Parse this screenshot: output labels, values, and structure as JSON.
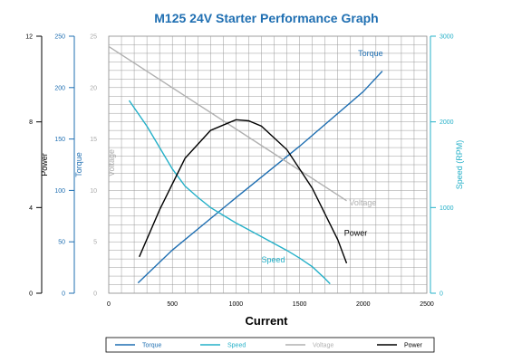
{
  "chart_data": {
    "type": "line",
    "title": "M125 24V Starter Performance Graph",
    "xlabel": "Current",
    "xlim": [
      0,
      2500
    ],
    "x_ticks": [
      "0",
      "500",
      "1000",
      "1500",
      "2000",
      "2500"
    ],
    "grid": true,
    "legend_placement": "bottom",
    "axes": {
      "power": {
        "label": "Power",
        "range": [
          0,
          12
        ],
        "ticks": [
          "0",
          "4",
          "8",
          "12"
        ],
        "color": "#000000"
      },
      "torque": {
        "label": "Torque",
        "range": [
          0,
          250
        ],
        "ticks": [
          "0",
          "50",
          "100",
          "150",
          "200",
          "250"
        ],
        "color": "#1f6fb2"
      },
      "voltage": {
        "label": "Voltage",
        "range": [
          0,
          25
        ],
        "ticks": [
          "0",
          "5",
          "10",
          "15",
          "20",
          "25"
        ],
        "color": "#aaaaaa"
      },
      "speed": {
        "label": "Speed (RPM)",
        "range": [
          0,
          3000
        ],
        "ticks": [
          "0",
          "1000",
          "2000",
          "3000"
        ],
        "color": "#25b0c8"
      }
    },
    "series": [
      {
        "name": "Torque",
        "axis": "torque",
        "color": "#1f6fb2",
        "annotation": "Torque",
        "points": [
          [
            230,
            10
          ],
          [
            500,
            42
          ],
          [
            1000,
            93
          ],
          [
            1500,
            143
          ],
          [
            2000,
            196
          ],
          [
            2150,
            216
          ]
        ]
      },
      {
        "name": "Speed",
        "axis": "speed",
        "color": "#25b0c8",
        "annotation": "Speed",
        "points": [
          [
            160,
            2250
          ],
          [
            300,
            1950
          ],
          [
            400,
            1700
          ],
          [
            500,
            1450
          ],
          [
            600,
            1250
          ],
          [
            700,
            1120
          ],
          [
            800,
            1000
          ],
          [
            900,
            910
          ],
          [
            1000,
            820
          ],
          [
            1100,
            740
          ],
          [
            1200,
            660
          ],
          [
            1300,
            580
          ],
          [
            1400,
            500
          ],
          [
            1500,
            410
          ],
          [
            1600,
            310
          ],
          [
            1700,
            170
          ],
          [
            1740,
            110
          ]
        ]
      },
      {
        "name": "Voltage",
        "axis": "voltage",
        "color": "#b0b0b0",
        "annotation": "Voltage",
        "points": [
          [
            0,
            24
          ],
          [
            1870,
            9
          ]
        ]
      },
      {
        "name": "Power",
        "axis": "power",
        "color": "#000000",
        "annotation": "Power",
        "points": [
          [
            240,
            1.7
          ],
          [
            400,
            3.9
          ],
          [
            600,
            6.3
          ],
          [
            800,
            7.6
          ],
          [
            1000,
            8.1
          ],
          [
            1100,
            8.05
          ],
          [
            1200,
            7.8
          ],
          [
            1400,
            6.7
          ],
          [
            1600,
            4.9
          ],
          [
            1800,
            2.5
          ],
          [
            1870,
            1.4
          ]
        ]
      }
    ],
    "legend": [
      "Torque",
      "Speed",
      "Voltage",
      "Power"
    ]
  }
}
